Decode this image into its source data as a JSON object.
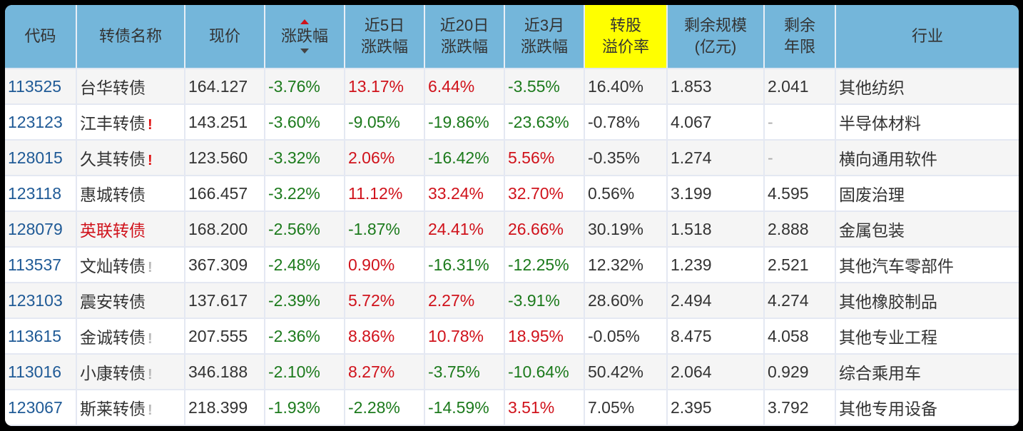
{
  "colors": {
    "header_bg": "#74b6da",
    "highlight_bg": "#ffff00",
    "positive": "#d0121b",
    "negative": "#1c7a1c",
    "code": "#1f5a96"
  },
  "header": {
    "code": "代码",
    "name": "转债名称",
    "price": "现价",
    "change": "涨跌幅",
    "change_5d_l1": "近5日",
    "change_5d_l2": "涨跌幅",
    "change_20d_l1": "近20日",
    "change_20d_l2": "涨跌幅",
    "change_3m_l1": "近3月",
    "change_3m_l2": "涨跌幅",
    "premium_l1": "转股",
    "premium_l2": "溢价率",
    "size_l1": "剩余规模",
    "size_l2": "(亿元)",
    "years_l1": "剩余",
    "years_l2": "年限",
    "industry": "行业"
  },
  "sort": {
    "column": "涨跌幅",
    "up_icon": "sort-up-arrow",
    "down_icon": "sort-down-arrow"
  },
  "rows": [
    {
      "code": "113525",
      "name": "台华转债",
      "flag": "",
      "flag_style": "",
      "name_red": false,
      "price": "164.127",
      "change": "-3.76%",
      "change_5d": "13.17%",
      "change_20d": "6.44%",
      "change_3m": "-3.55%",
      "premium": "16.40%",
      "size": "1.853",
      "years": "2.041",
      "industry": "其他纺织"
    },
    {
      "code": "123123",
      "name": "江丰转债",
      "flag": "!",
      "flag_style": "red",
      "name_red": false,
      "price": "143.251",
      "change": "-3.60%",
      "change_5d": "-9.05%",
      "change_20d": "-19.86%",
      "change_3m": "-23.63%",
      "premium": "-0.78%",
      "size": "4.067",
      "years": "-",
      "industry": "半导体材料"
    },
    {
      "code": "128015",
      "name": "久其转债",
      "flag": "!",
      "flag_style": "red",
      "name_red": false,
      "price": "123.560",
      "change": "-3.32%",
      "change_5d": "2.06%",
      "change_20d": "-16.42%",
      "change_3m": "5.56%",
      "premium": "-0.35%",
      "size": "1.274",
      "years": "-",
      "industry": "横向通用软件"
    },
    {
      "code": "123118",
      "name": "惠城转债",
      "flag": "",
      "flag_style": "",
      "name_red": false,
      "price": "166.457",
      "change": "-3.22%",
      "change_5d": "11.12%",
      "change_20d": "33.24%",
      "change_3m": "32.70%",
      "premium": "0.56%",
      "size": "3.199",
      "years": "4.595",
      "industry": "固废治理"
    },
    {
      "code": "128079",
      "name": "英联转债",
      "flag": "",
      "flag_style": "",
      "name_red": true,
      "price": "168.200",
      "change": "-2.56%",
      "change_5d": "-1.87%",
      "change_20d": "24.41%",
      "change_3m": "26.66%",
      "premium": "30.19%",
      "size": "1.518",
      "years": "2.888",
      "industry": "金属包装"
    },
    {
      "code": "113537",
      "name": "文灿转债",
      "flag": "!",
      "flag_style": "gray",
      "name_red": false,
      "price": "367.309",
      "change": "-2.48%",
      "change_5d": "0.90%",
      "change_20d": "-16.31%",
      "change_3m": "-12.25%",
      "premium": "12.32%",
      "size": "1.239",
      "years": "2.521",
      "industry": "其他汽车零部件"
    },
    {
      "code": "123103",
      "name": "震安转债",
      "flag": "",
      "flag_style": "",
      "name_red": false,
      "price": "137.617",
      "change": "-2.39%",
      "change_5d": "5.72%",
      "change_20d": "2.27%",
      "change_3m": "-3.91%",
      "premium": "28.60%",
      "size": "2.494",
      "years": "4.274",
      "industry": "其他橡胶制品"
    },
    {
      "code": "113615",
      "name": "金诚转债",
      "flag": "!",
      "flag_style": "gray",
      "name_red": false,
      "price": "207.555",
      "change": "-2.36%",
      "change_5d": "8.86%",
      "change_20d": "10.78%",
      "change_3m": "18.95%",
      "premium": "-0.05%",
      "size": "8.475",
      "years": "4.058",
      "industry": "其他专业工程"
    },
    {
      "code": "113016",
      "name": "小康转债",
      "flag": "!",
      "flag_style": "gray",
      "name_red": false,
      "price": "346.188",
      "change": "-2.10%",
      "change_5d": "8.27%",
      "change_20d": "-3.75%",
      "change_3m": "-10.64%",
      "premium": "50.42%",
      "size": "2.064",
      "years": "0.929",
      "industry": "综合乘用车"
    },
    {
      "code": "123067",
      "name": "斯莱转债",
      "flag": "!",
      "flag_style": "gray",
      "name_red": false,
      "price": "218.399",
      "change": "-1.93%",
      "change_5d": "-2.28%",
      "change_20d": "-14.59%",
      "change_3m": "3.51%",
      "premium": "7.05%",
      "size": "2.395",
      "years": "3.792",
      "industry": "其他专用设备"
    }
  ]
}
